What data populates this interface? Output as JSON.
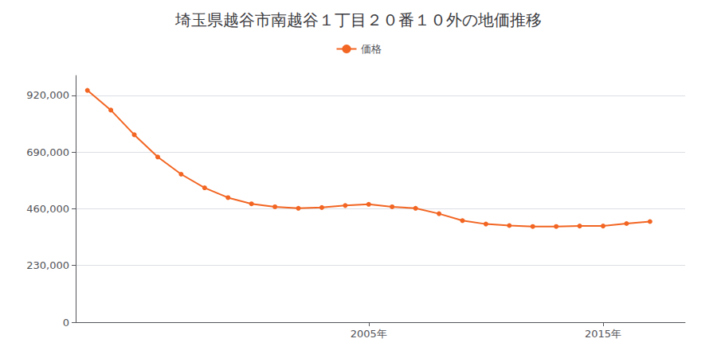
{
  "chart_data": {
    "type": "line",
    "title": "埼玉県越谷市南越谷１丁目２０番１０外の地価推移",
    "x": [
      1993,
      1994,
      1995,
      1996,
      1997,
      1998,
      1999,
      2000,
      2001,
      2002,
      2003,
      2004,
      2005,
      2006,
      2007,
      2008,
      2009,
      2010,
      2011,
      2012,
      2013,
      2014,
      2015,
      2016,
      2017
    ],
    "series": [
      {
        "name": "価格",
        "color": "#F26522",
        "marker": "circle",
        "values": [
          940000,
          860000,
          760000,
          670000,
          600000,
          545000,
          505000,
          480000,
          468000,
          462000,
          465000,
          473000,
          478000,
          468000,
          462000,
          440000,
          412000,
          398000,
          392000,
          388000,
          388000,
          390000,
          390000,
          400000,
          408000
        ]
      }
    ],
    "xlim": [
      1992.5,
      2018.5
    ],
    "xticks": [
      {
        "value": 2005,
        "label": "2005年"
      },
      {
        "value": 2015,
        "label": "2015年"
      }
    ],
    "ylim": [
      0,
      1000000
    ],
    "yticks": [
      0,
      {
        "value": 230000,
        "label": "230,000"
      },
      {
        "value": 460000,
        "label": "460,000"
      },
      {
        "value": 690000,
        "label": "690,000"
      },
      {
        "value": 920000,
        "label": "920,000"
      }
    ],
    "grid": "y",
    "legend": "top"
  }
}
